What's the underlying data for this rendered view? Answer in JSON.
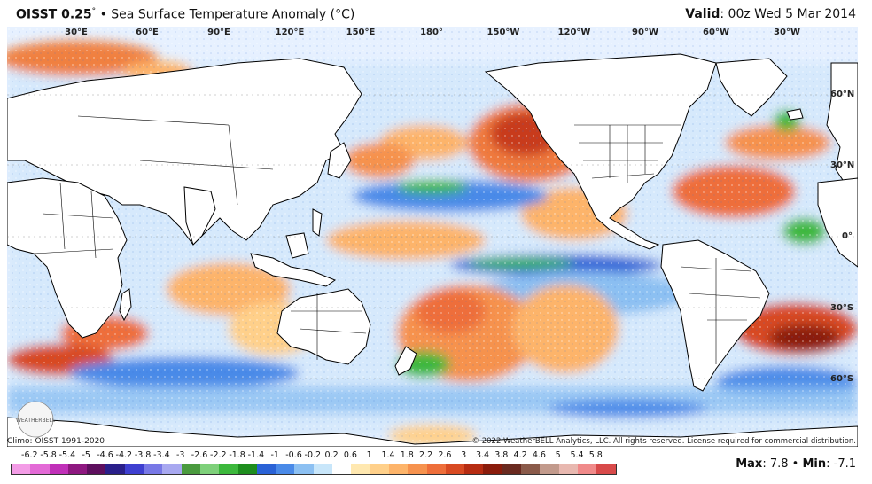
{
  "header": {
    "product": "OISST 0.25",
    "degree": "°",
    "bullet": "•",
    "subtitle": "Sea Surface Temperature Anomaly (°C)",
    "valid_label": "Valid",
    "valid_value": ": 00z Wed 5 Mar 2014"
  },
  "map": {
    "lon_labels": [
      "30°E",
      "60°E",
      "90°E",
      "120°E",
      "150°E",
      "180°",
      "150°W",
      "120°W",
      "90°W",
      "60°W",
      "30°W"
    ],
    "lat_labels": [
      "60°N",
      "30°N",
      "0°",
      "30°S",
      "60°S"
    ],
    "colors": {
      "ocean_base": "#f2f6ff",
      "land": "#ffffff",
      "coast": "#000000"
    }
  },
  "footer": {
    "climo": "Climo: OISST 1991-2020",
    "copyright": "© 2022 WeatherBELL Analytics, LLC. All rights reserved. License required for commercial distribution.",
    "logo_text": "WEATHERBELL"
  },
  "colorbar": {
    "ticks": [
      "-6.2",
      "-5.8",
      "-5.4",
      "-5",
      "-4.6",
      "-4.2",
      "-3.8",
      "-3.4",
      "-3",
      "-2.6",
      "-2.2",
      "-1.8",
      "-1.4",
      "-1",
      "-0.6",
      "-0.2",
      "0.2",
      "0.6",
      "1",
      "1.4",
      "1.8",
      "2.2",
      "2.6",
      "3",
      "3.4",
      "3.8",
      "4.2",
      "4.6",
      "5",
      "5.4",
      "5.8"
    ],
    "colors": [
      "#f39ce6",
      "#e36ad6",
      "#c030b8",
      "#8e1880",
      "#5e0f5e",
      "#2a1f8a",
      "#3e3fd0",
      "#7878e6",
      "#a8a8f0",
      "#4a9a3e",
      "#7ed07a",
      "#3cb83c",
      "#1e8e1e",
      "#2a62d6",
      "#4a8ae8",
      "#8cc0f2",
      "#c8e6fa",
      "#ffffff",
      "#ffe8b0",
      "#ffd08a",
      "#fdb46a",
      "#f6924e",
      "#ee6e3a",
      "#d84a22",
      "#b62c12",
      "#8a1c0c",
      "#6a2a20",
      "#8a5a4a",
      "#c29a8c",
      "#e8b8b0",
      "#f08a8a",
      "#d84a4a"
    ]
  },
  "stats": {
    "max_label": "Max",
    "max_value": ": 7.8",
    "sep": " • ",
    "min_label": "Min",
    "min_value": ": -7.1"
  }
}
